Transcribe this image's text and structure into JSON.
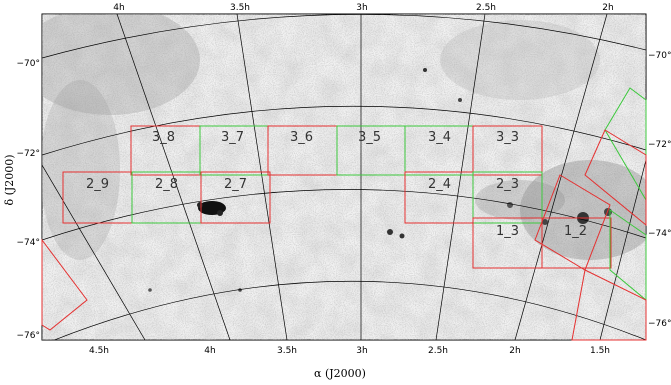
{
  "chart_data": {
    "type": "map",
    "x_axis": {
      "label": "α (J2000)",
      "top_ticks": [
        "4h",
        "3.5h",
        "3h",
        "2.5h",
        "2h"
      ],
      "bottom_ticks": [
        "4.5h",
        "4h",
        "3.5h",
        "3h",
        "2.5h",
        "2h",
        "1.5h"
      ]
    },
    "y_axis": {
      "label": "δ (J2000)",
      "left_ticks": [
        "−70°",
        "−72°",
        "−74°",
        "−76°"
      ],
      "right_ticks": [
        "−70°",
        "−72°",
        "−74°",
        "−76°"
      ]
    },
    "fields": [
      {
        "label": "3_8",
        "color": "red"
      },
      {
        "label": "3_7",
        "color": "green"
      },
      {
        "label": "3_6",
        "color": "green"
      },
      {
        "label": "3_5",
        "color": "green"
      },
      {
        "label": "3_4",
        "color": "green"
      },
      {
        "label": "3_3",
        "color": "red"
      },
      {
        "label": "2_9",
        "color": "red"
      },
      {
        "label": "2_8",
        "color": "green"
      },
      {
        "label": "2_7",
        "color": "red"
      },
      {
        "label": "2_4",
        "color": "red"
      },
      {
        "label": "2_3",
        "color": "green"
      },
      {
        "label": "1_3",
        "color": "red"
      },
      {
        "label": "1_2",
        "color": "red"
      }
    ],
    "colors": {
      "red": "#e53030",
      "green": "#3cc83c",
      "grid": "#000000"
    }
  }
}
